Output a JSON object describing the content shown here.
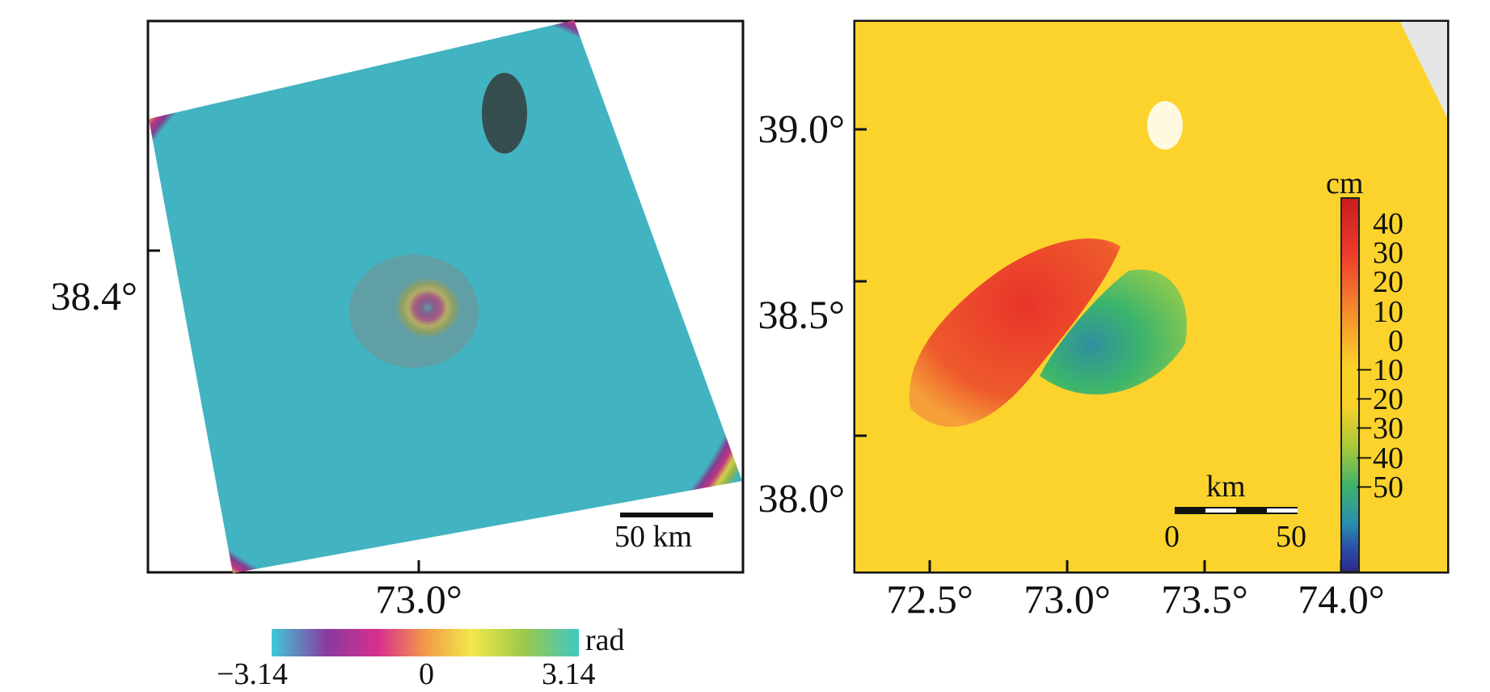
{
  "left_panel": {
    "y_tick_label": "38.4°",
    "x_tick_label": "73.0°",
    "scale_bar_label": "50 km",
    "colorbar": {
      "unit": "rad",
      "tick_labels": [
        "−3.14",
        "0",
        "3.14"
      ],
      "colors": [
        "#3fc8d8",
        "#8a3aa0",
        "#d8308c",
        "#f29a4a",
        "#f2e84a",
        "#9cc84a",
        "#3fc8c0"
      ]
    }
  },
  "right_panel": {
    "y_tick_labels": [
      "39.0°",
      "38.5°",
      "38.0°"
    ],
    "x_tick_labels": [
      "72.5°",
      "73.0°",
      "73.5°",
      "74.0°"
    ],
    "scale_bar": {
      "unit": "km",
      "tick_labels": [
        "0",
        "50"
      ]
    },
    "colorbar": {
      "unit": "cm",
      "tick_labels": [
        "40",
        "30",
        "20",
        "10",
        "0",
        "−10",
        "−20",
        "−30",
        "−40",
        "−50"
      ],
      "colors": [
        "#c81e1e",
        "#ee3b2b",
        "#f58a2c",
        "#fbd128",
        "#fbd128",
        "#a6c83a",
        "#3fb36a",
        "#2a8fb0",
        "#2b4da8",
        "#2a2a8a"
      ]
    },
    "colors": {
      "background": "#fbd32c",
      "uplift": "#e8342a",
      "subsidence": "#3cb46c"
    }
  }
}
